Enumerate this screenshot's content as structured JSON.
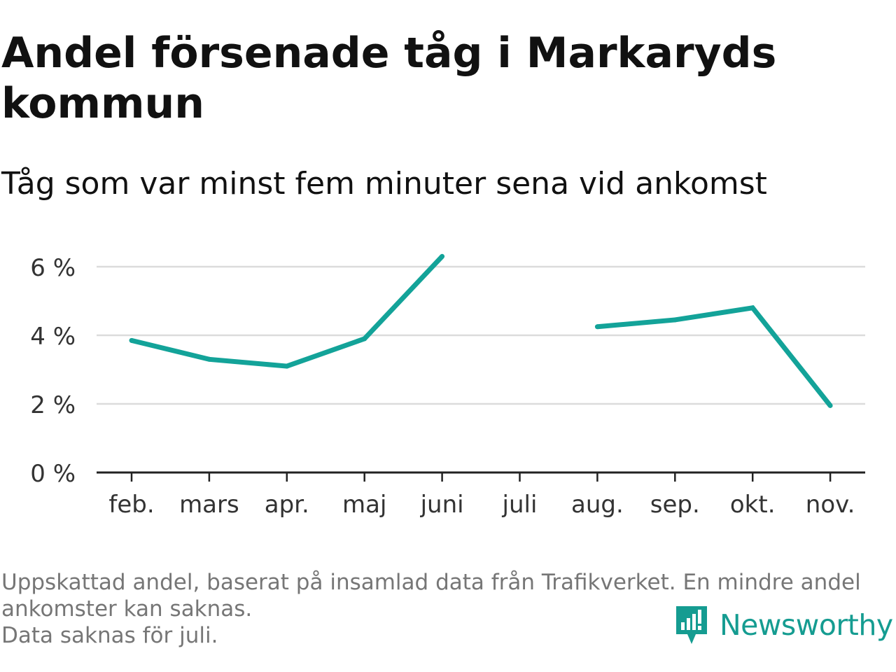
{
  "title": "Andel försenade tåg i Markaryds kommun",
  "subtitle": "Tåg som var minst fem minuter sena vid ankomst",
  "footnote": {
    "line1": "Uppskattad andel, baserat på insamlad data från Trafikverket. En mindre andel",
    "line2": "ankomster kan saknas.",
    "line3": "Data saknas för juli."
  },
  "logo": {
    "text": "Newsworthy",
    "icon": "newsworthy-chart-icon"
  },
  "colors": {
    "line": "#13a399",
    "grid": "#dcdcdc",
    "axis": "#222222",
    "text": "#333333",
    "footnote": "#767676",
    "brand": "#159c91"
  },
  "chart_data": {
    "type": "line",
    "categories": [
      "feb.",
      "mars",
      "apr.",
      "maj",
      "juni",
      "juli",
      "aug.",
      "sep.",
      "okt.",
      "nov."
    ],
    "series": [
      {
        "values": [
          3.85,
          3.3,
          3.1,
          3.9,
          6.3,
          null,
          4.25,
          4.45,
          4.8,
          1.95
        ]
      }
    ],
    "y_ticks": [
      0,
      2,
      4,
      6
    ],
    "y_tick_labels": [
      "0 %",
      "2 %",
      "4 %",
      "6 %"
    ],
    "ylim": [
      0,
      6.6
    ],
    "xlabel": "",
    "ylabel": "",
    "grid": true,
    "legend": "none"
  }
}
